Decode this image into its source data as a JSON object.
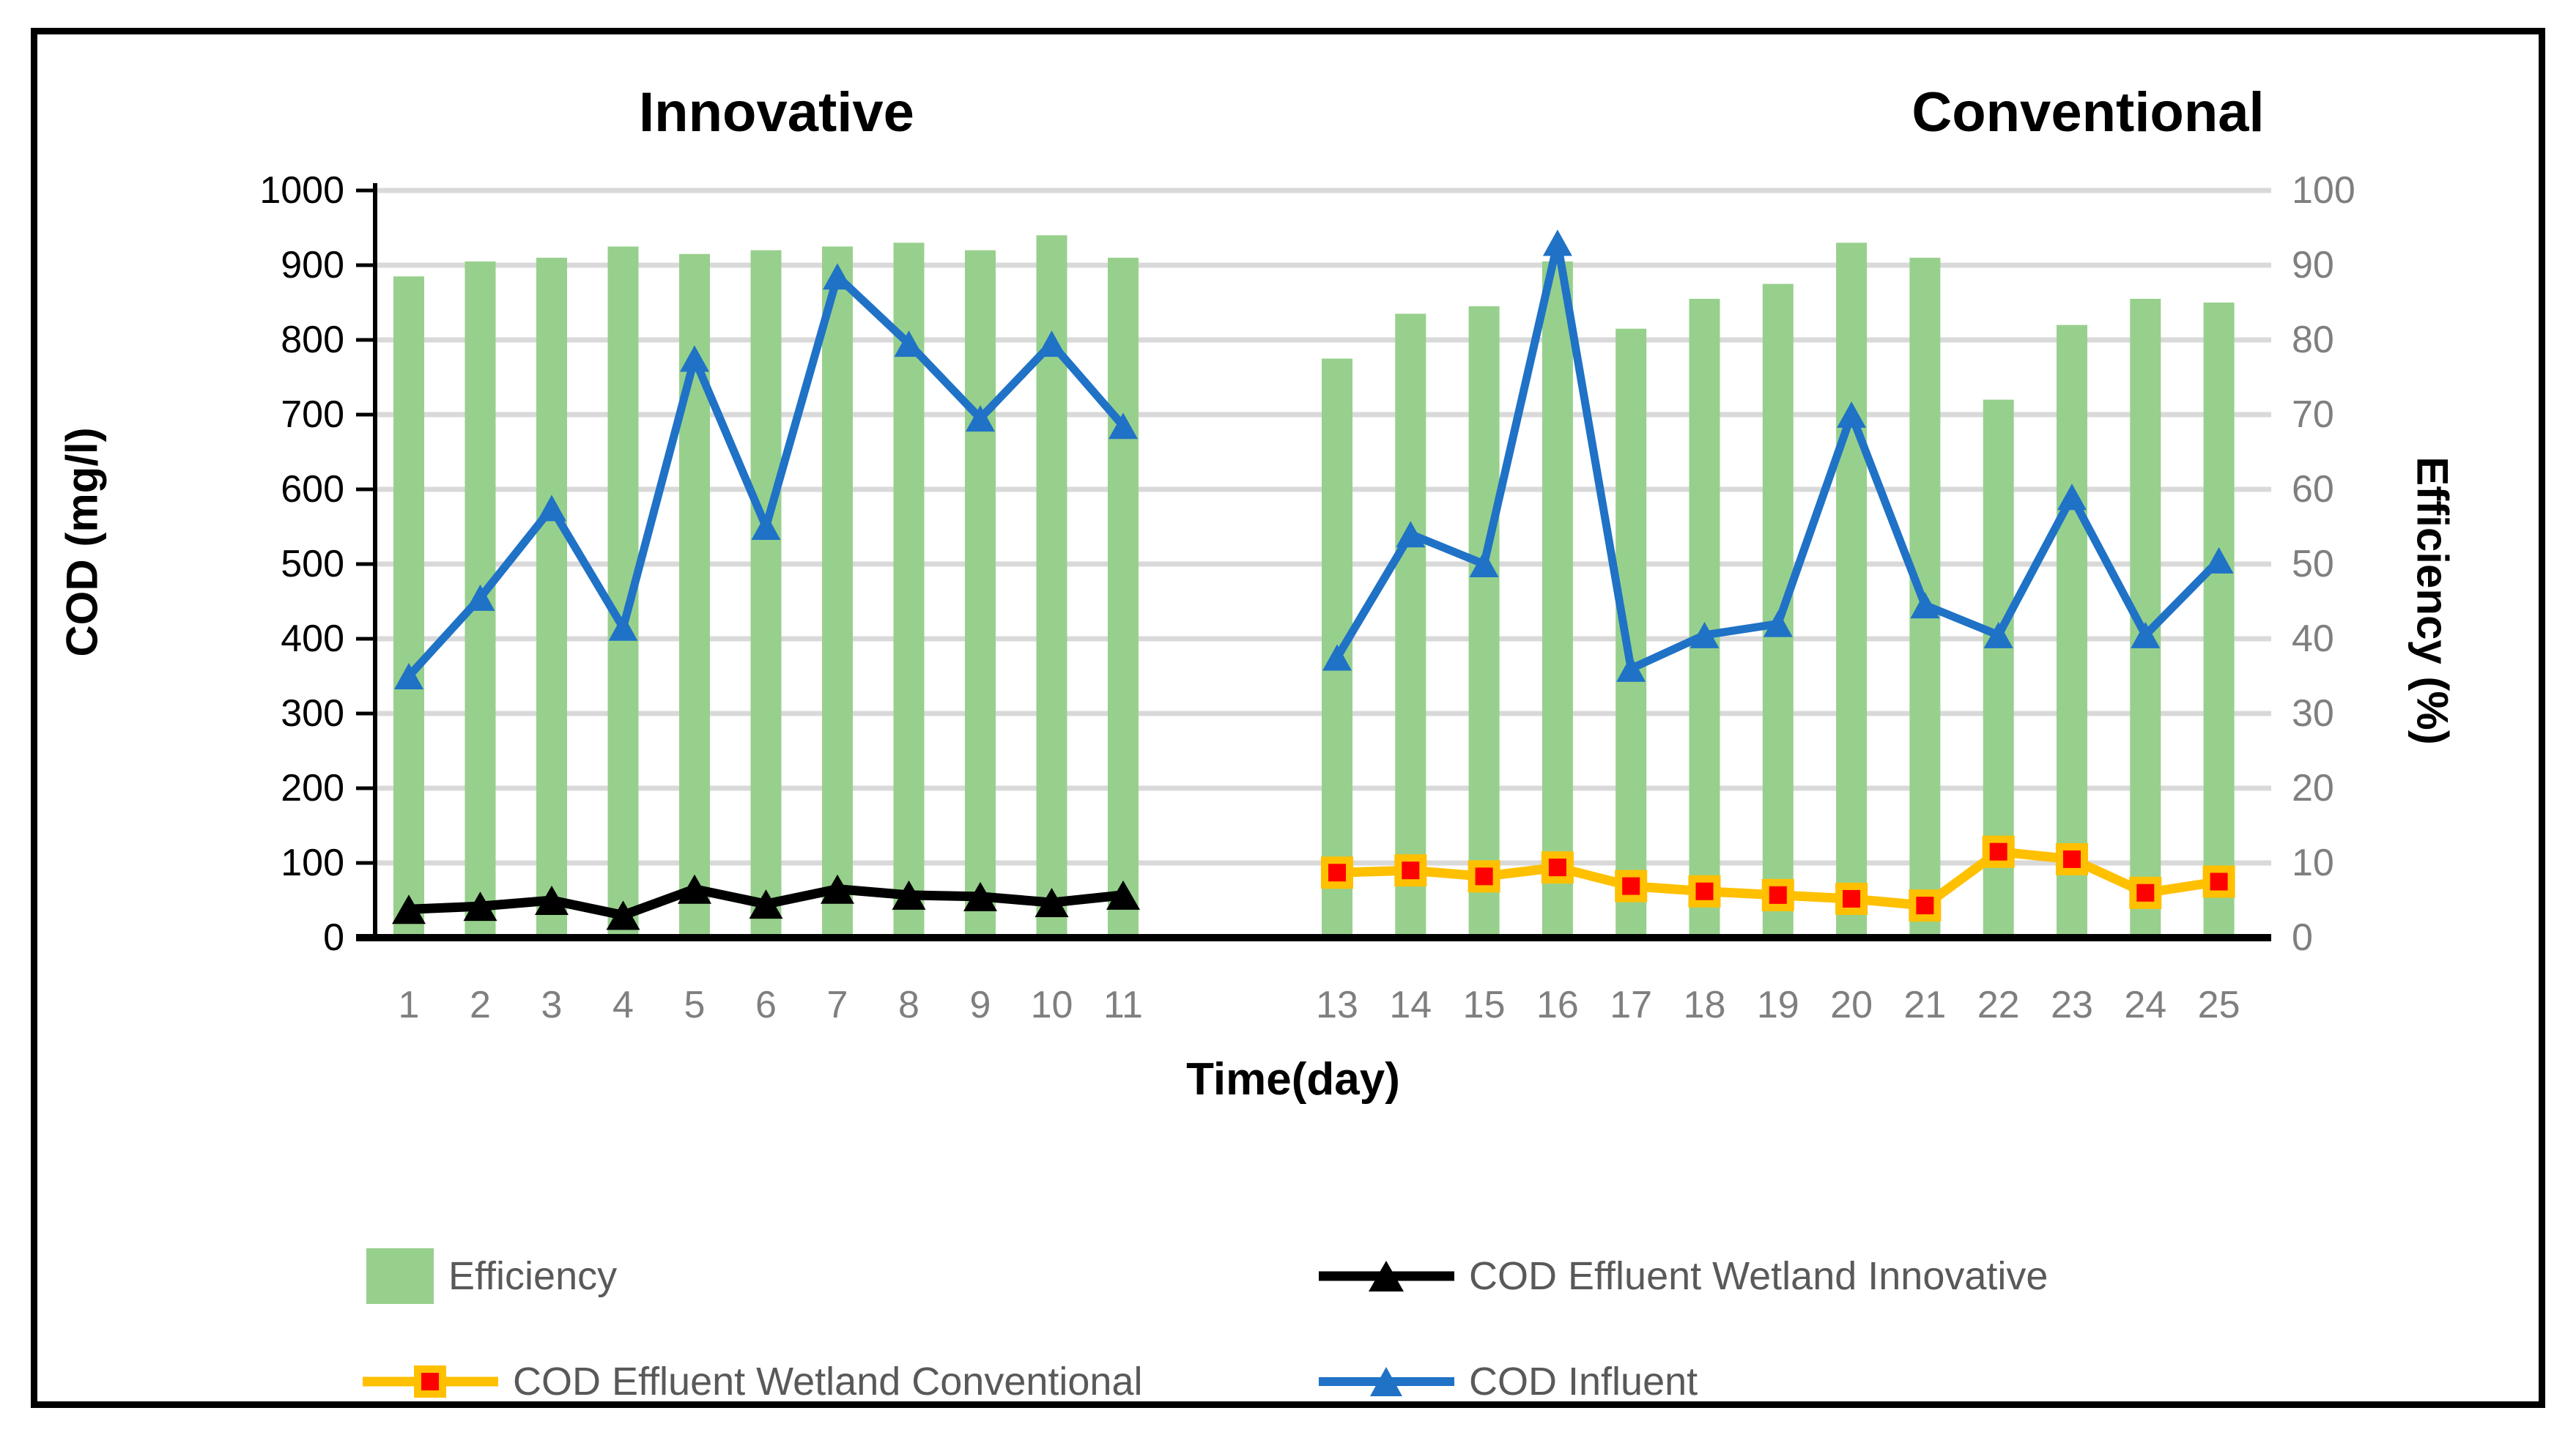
{
  "figure": {
    "left_panel_title": "Innovative",
    "right_panel_title": "Conventional",
    "x_axis_title": "Time(day)",
    "left_axis_title": "COD (mg/l)",
    "right_axis_title": "Efficiency (%)"
  },
  "legend": {
    "items": [
      {
        "label": "Efficiency",
        "marker": "green-bar-swatch"
      },
      {
        "label": "COD Effluent Wetland Innovative",
        "marker": "black-line-triangle"
      },
      {
        "label": "COD Effluent Wetland Conventional",
        "marker": "orange-line-red-square"
      },
      {
        "label": "COD Influent",
        "marker": "blue-line-triangle"
      }
    ]
  },
  "colors": {
    "bar_green": "#97D08C",
    "influent_blue": "#1F72C6",
    "effluent_black": "#000000",
    "effluent_orange": "#FFC000",
    "effluent_red": "#FF0000",
    "gridline": "#D9D9D9",
    "axis_black": "#000000",
    "tick_gray": "#7F7F7F",
    "legend_text": "#595959"
  },
  "chart_data": {
    "type": "combo-bar-line-dual-axis",
    "title": "",
    "xlabel": "Time(day)",
    "grid": "horizontal",
    "left_axis": {
      "label": "COD (mg/l)",
      "min": 0,
      "max": 1000,
      "step": 100,
      "ticks": [
        1000,
        900,
        800,
        700,
        600,
        500,
        400,
        300,
        200,
        100,
        0
      ]
    },
    "right_axis": {
      "label": "Efficiency (%)",
      "min": 0,
      "max": 100,
      "step": 10,
      "ticks": [
        100,
        90,
        80,
        70,
        60,
        50,
        40,
        30,
        20,
        10,
        0
      ]
    },
    "panels": [
      {
        "title": "Innovative",
        "days": [
          1,
          2,
          3,
          4,
          5,
          6,
          7,
          8,
          9,
          10,
          11
        ],
        "series": [
          {
            "name": "Efficiency",
            "type": "bar",
            "axis": "right",
            "values": [
              88.5,
              90.5,
              91,
              92.5,
              91.5,
              92,
              92.5,
              93,
              92,
              94,
              91
            ]
          },
          {
            "name": "COD Influent",
            "type": "line",
            "axis": "left",
            "marker": "triangle",
            "values": [
              350,
              455,
              575,
              415,
              775,
              550,
              885,
              795,
              695,
              795,
              685
            ]
          },
          {
            "name": "COD Effluent Wetland Innovative",
            "type": "line",
            "axis": "left",
            "marker": "triangle",
            "values": [
              38,
              42,
              50,
              30,
              65,
              45,
              65,
              57,
              55,
              47,
              57
            ]
          }
        ]
      },
      {
        "title": "Conventional",
        "days": [
          13,
          14,
          15,
          16,
          17,
          18,
          19,
          20,
          21,
          22,
          23,
          24,
          25
        ],
        "series": [
          {
            "name": "Efficiency",
            "type": "bar",
            "axis": "right",
            "values": [
              77.5,
              83.5,
              84.5,
              90.5,
              81.5,
              85.5,
              87.5,
              93,
              91,
              72,
              82,
              85.5,
              85
            ]
          },
          {
            "name": "COD Influent",
            "type": "line",
            "axis": "left",
            "marker": "triangle",
            "values": [
              375,
              540,
              500,
              930,
              360,
              405,
              420,
              700,
              445,
              405,
              590,
              405,
              505
            ]
          },
          {
            "name": "COD Effluent Wetland Conventional",
            "type": "line",
            "axis": "left",
            "marker": "square",
            "values": [
              87,
              90,
              82,
              94,
              69,
              62,
              57,
              52,
              43,
              115,
              105,
              60,
              75
            ]
          }
        ]
      }
    ]
  }
}
